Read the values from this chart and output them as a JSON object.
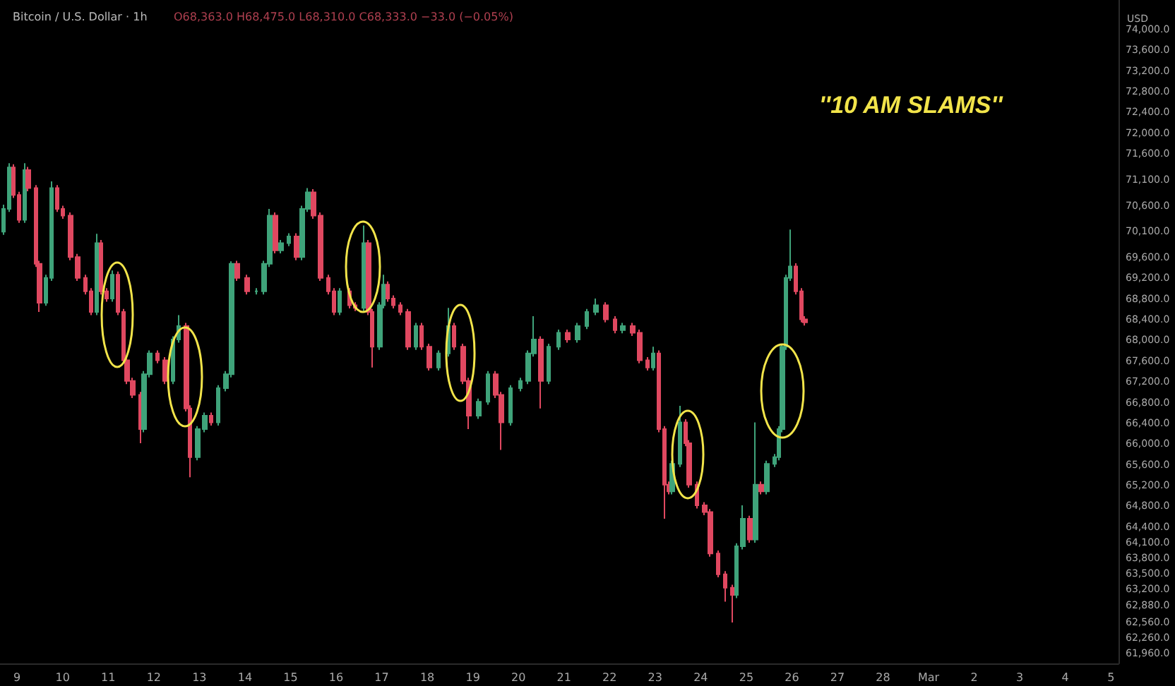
{
  "chart_data": {
    "type": "candlestick",
    "title": "Bitcoin / U.S. Dollar · 1h",
    "subtitle": "O68,363.0 H68,475.0 L68,310.0 C68,333.0 −33.0 (−0.05%)",
    "ylabel": "USD",
    "annotations": [
      "''10 AM SLAMS''"
    ],
    "colors": [
      "#3fa37a",
      "#3fa37a",
      "#e04860",
      "#e04860",
      "#3fa37a",
      "#e04860",
      "#e04860",
      "#e04860",
      "#3fa37a",
      "#3fa37a",
      "#e04860",
      "#e04860",
      "#e04860",
      "#e04860",
      "#e04860",
      "#e04860",
      "#3fa37a",
      "#e04860",
      "#e04860",
      "#3fa37a",
      "#e04860",
      "#e04860",
      "#e04860",
      "#e04860",
      "#e04860",
      "#3fa37a",
      "#3fa37a",
      "#e04860",
      "#e04860",
      "#3fa37a",
      "#3fa37a",
      "#e04860",
      "#e04860",
      "#3fa37a",
      "#3fa37a",
      "#e04860",
      "#3fa37a",
      "#3fa37a",
      "#3fa37a",
      "#e04860",
      "#e04860",
      "#3fa37a",
      "#3fa37a",
      "#3fa37a",
      "#e04860",
      "#3fa37a",
      "#3fa37a",
      "#e04860",
      "#3fa37a",
      "#3fa37a",
      "#e04860",
      "#e04860",
      "#e04860",
      "#e04860",
      "#3fa37a",
      "#e04860",
      "#e04860",
      "#3fa37a",
      "#e04860",
      "#e04860",
      "#3fa37a",
      "#3fa37a",
      "#e04860",
      "#e04860",
      "#e04860",
      "#e04860",
      "#3fa37a",
      "#e04860",
      "#e04860",
      "#3fa37a",
      "#3fa37a",
      "#e04860",
      "#e04860",
      "#e04860",
      "#3fa37a",
      "#3fa37a",
      "#e04860",
      "#e04860",
      "#3fa37a",
      "#3fa37a",
      "#3fa37a",
      "#3fa37a",
      "#e04860",
      "#3fa37a",
      "#3fa37a",
      "#e04860",
      "#3fa37a",
      "#3fa37a",
      "#3fa37a",
      "#e04860",
      "#e04860",
      "#3fa37a",
      "#e04860",
      "#e04860",
      "#e04860",
      "#3fa37a",
      "#e04860",
      "#e04860",
      "#e04860",
      "#3fa37a",
      "#3fa37a",
      "#e04860",
      "#e04860",
      "#e04860",
      "#e04860",
      "#e04860",
      "#e04860",
      "#e04860",
      "#e04860",
      "#3fa37a",
      "#3fa37a",
      "#e04860",
      "#3fa37a",
      "#e04860",
      "#3fa37a",
      "#3fa37a",
      "#3fa37a",
      "#3fa37a",
      "#3fa37a",
      "#3fa37a",
      "#e04860",
      "#e04860",
      "#e04860"
    ],
    "x": [
      "--02-08T17:00",
      "--02-08T20:00",
      "--02-08T22:00",
      "--02-09T01:00",
      "--02-09T04:00",
      "--02-09T06:00",
      "--02-09T10:00",
      "--02-09T12:00",
      "--02-09T15:00",
      "--02-09T18:00",
      "--02-09T21:00",
      "--02-10T00:00",
      "--02-10T04:00",
      "--02-10T08:00",
      "--02-10T12:00",
      "--02-10T15:00",
      "--02-10T18:00",
      "--02-10T20:00",
      "--02-10T23:00",
      "--02-11T02:00",
      "--02-11T05:00",
      "--02-11T08:00",
      "--02-11T10:00",
      "--02-11T13:00",
      "--02-11T17:00",
      "--02-11T19:00",
      "--02-11T22:00",
      "--02-12T02:00",
      "--02-12T06:00",
      "--02-12T10:00",
      "--02-12T13:00",
      "--02-12T17:00",
      "--02-12T19:00",
      "--02-12T23:00",
      "--02-13T03:00",
      "--02-13T06:00",
      "--02-13T10:00",
      "--02-13T14:00",
      "--02-13T17:00",
      "--02-13T20:00",
      "--02-14T01:00",
      "--02-14T06:00",
      "--02-14T10:00",
      "--02-14T13:00",
      "--02-14T16:00",
      "--02-14T19:00",
      "--02-14T23:00",
      "--02-15T03:00",
      "--02-15T06:00",
      "--02-15T09:00",
      "--02-15T12:00",
      "--02-15T16:00",
      "--02-15T20:00",
      "--02-15T23:00",
      "--02-16T02:00",
      "--02-16T07:00",
      "--02-16T10:00",
      "--02-16T15:00",
      "--02-16T17:00",
      "--02-16T19:00",
      "--02-16T23:00",
      "--02-17T01:00",
      "--02-17T03:00",
      "--02-17T06:00",
      "--02-17T10:00",
      "--02-17T14:00",
      "--02-17T18:00",
      "--02-17T21:00",
      "--02-18T01:00",
      "--02-18T06:00",
      "--02-18T11:00",
      "--02-18T14:00",
      "--02-18T19:00",
      "--02-18T22:00",
      "--02-19T03:00",
      "--02-19T08:00",
      "--02-19T12:00",
      "--02-19T15:00",
      "--02-19T20:00",
      "--02-20T01:00",
      "--02-20T05:00",
      "--02-20T08:00",
      "--02-20T12:00",
      "--02-20T16:00",
      "--02-20T21:00",
      "--02-21T02:00",
      "--02-21T07:00",
      "--02-21T12:00",
      "--02-21T17:00",
      "--02-21T22:00",
      "--02-22T03:00",
      "--02-22T07:00",
      "--02-22T12:00",
      "--02-22T16:00",
      "--02-22T20:00",
      "--02-22T23:00",
      "--02-23T02:00",
      "--02-23T05:00",
      "--02-23T07:00",
      "--02-23T09:00",
      "--02-23T13:00",
      "--02-23T16:00",
      "--02-23T18:00",
      "--02-23T22:00",
      "--02-24T02:00",
      "--02-24T05:00",
      "--02-24T09:00",
      "--02-24T13:00",
      "--02-24T17:00",
      "--02-24T19:00",
      "--02-24T22:00",
      "--02-25T02:00",
      "--02-25T05:00",
      "--02-25T08:00",
      "--02-25T11:00",
      "--02-25T15:00",
      "--02-25T17:00",
      "--02-25T19:00",
      "--02-25T21:00",
      "--02-25T23:00",
      "--02-26T02:00",
      "--02-26T05:00",
      "--02-26T07:00"
    ],
    "ohlc": [
      [
        70100,
        70620,
        70040,
        70540
      ],
      [
        70540,
        71420,
        70480,
        71340
      ],
      [
        71340,
        71400,
        70750,
        70810
      ],
      [
        70810,
        70870,
        70270,
        70330
      ],
      [
        70330,
        71420,
        70270,
        71290
      ],
      [
        71290,
        71350,
        70880,
        70940
      ],
      [
        70940,
        71000,
        69420,
        69480
      ],
      [
        69480,
        69540,
        68550,
        68730
      ],
      [
        68730,
        69270,
        68670,
        69210
      ],
      [
        69210,
        71070,
        69150,
        70940
      ],
      [
        70940,
        71000,
        70480,
        70540
      ],
      [
        70540,
        70600,
        70350,
        70410
      ],
      [
        70410,
        70470,
        69550,
        69610
      ],
      [
        69610,
        69670,
        69150,
        69210
      ],
      [
        69210,
        69270,
        68890,
        68950
      ],
      [
        68950,
        69010,
        68490,
        68550
      ],
      [
        68550,
        70060,
        68490,
        69880
      ],
      [
        69880,
        69940,
        68890,
        68950
      ],
      [
        68950,
        69010,
        68750,
        68810
      ],
      [
        68810,
        69350,
        68750,
        69270
      ],
      [
        69270,
        69330,
        68490,
        68550
      ],
      [
        68550,
        68610,
        67560,
        67620
      ],
      [
        67620,
        67680,
        67160,
        67220
      ],
      [
        67220,
        67280,
        66890,
        66950
      ],
      [
        66950,
        67010,
        66020,
        66290
      ],
      [
        66290,
        67410,
        66230,
        67350
      ],
      [
        67350,
        67810,
        67290,
        67750
      ],
      [
        67750,
        67810,
        67560,
        67620
      ],
      [
        67620,
        67680,
        67160,
        67220
      ],
      [
        67220,
        68080,
        67160,
        68020
      ],
      [
        68020,
        68490,
        67960,
        68280
      ],
      [
        68280,
        68340,
        66630,
        66690
      ],
      [
        66690,
        66750,
        65360,
        65750
      ],
      [
        65750,
        66350,
        65690,
        66290
      ],
      [
        66290,
        66610,
        66230,
        66550
      ],
      [
        66550,
        66610,
        66360,
        66420
      ],
      [
        66420,
        67140,
        66360,
        67080
      ],
      [
        67080,
        67410,
        67020,
        67350
      ],
      [
        67350,
        69530,
        67290,
        69480
      ],
      [
        69480,
        69540,
        69150,
        69210
      ],
      [
        69210,
        69270,
        68890,
        68950
      ],
      [
        68950,
        69010,
        68890,
        68950
      ],
      [
        68950,
        69540,
        68890,
        69480
      ],
      [
        69480,
        70540,
        69420,
        70410
      ],
      [
        70410,
        70470,
        69680,
        69740
      ],
      [
        69740,
        69940,
        69680,
        69880
      ],
      [
        69880,
        70070,
        69820,
        70010
      ],
      [
        70010,
        70070,
        69550,
        69610
      ],
      [
        69610,
        70600,
        69550,
        70540
      ],
      [
        70540,
        70940,
        70480,
        70860
      ],
      [
        70860,
        70920,
        70350,
        70410
      ],
      [
        70410,
        70470,
        69150,
        69210
      ],
      [
        69210,
        69270,
        68890,
        68950
      ],
      [
        68950,
        69010,
        68490,
        68550
      ],
      [
        68550,
        69010,
        68490,
        68950
      ],
      [
        68950,
        69010,
        68620,
        68680
      ],
      [
        68680,
        68740,
        68570,
        68630
      ],
      [
        68630,
        70220,
        68570,
        69880
      ],
      [
        69880,
        69940,
        68490,
        68550
      ],
      [
        68550,
        68610,
        67480,
        67880
      ],
      [
        67880,
        68740,
        67820,
        68680
      ],
      [
        68680,
        69270,
        68620,
        69080
      ],
      [
        69080,
        69140,
        68750,
        68810
      ],
      [
        68810,
        68870,
        68620,
        68680
      ],
      [
        68680,
        68740,
        68490,
        68550
      ],
      [
        68550,
        68610,
        67820,
        67880
      ],
      [
        67880,
        68340,
        67820,
        68280
      ],
      [
        68280,
        68340,
        67820,
        67880
      ],
      [
        67880,
        67940,
        67420,
        67480
      ],
      [
        67480,
        67810,
        67420,
        67750
      ],
      [
        67750,
        68630,
        67690,
        68280
      ],
      [
        68280,
        68340,
        67820,
        67880
      ],
      [
        67880,
        67940,
        67160,
        67220
      ],
      [
        67220,
        67280,
        66290,
        66550
      ],
      [
        66550,
        66880,
        66490,
        66820
      ],
      [
        66820,
        67410,
        66760,
        67350
      ],
      [
        67350,
        67410,
        66890,
        66950
      ],
      [
        66950,
        67010,
        65890,
        66420
      ],
      [
        66420,
        67140,
        66360,
        67080
      ],
      [
        67080,
        67280,
        67020,
        67220
      ],
      [
        67220,
        67810,
        67160,
        67750
      ],
      [
        67750,
        68470,
        67690,
        68020
      ],
      [
        68020,
        68080,
        66690,
        67220
      ],
      [
        67220,
        67940,
        67160,
        67880
      ],
      [
        67880,
        68210,
        67820,
        68150
      ],
      [
        68150,
        68210,
        67960,
        68020
      ],
      [
        68020,
        68340,
        67960,
        68280
      ],
      [
        68280,
        68610,
        68220,
        68550
      ],
      [
        68550,
        68810,
        68490,
        68680
      ],
      [
        68680,
        68740,
        68350,
        68410
      ],
      [
        68410,
        68470,
        68140,
        68200
      ],
      [
        68200,
        68340,
        68140,
        68280
      ],
      [
        68280,
        68340,
        68090,
        68150
      ],
      [
        68150,
        68210,
        67560,
        67620
      ],
      [
        67620,
        67680,
        67420,
        67480
      ],
      [
        67480,
        67880,
        67420,
        67750
      ],
      [
        67750,
        67810,
        66230,
        66290
      ],
      [
        66290,
        66350,
        64560,
        65220
      ],
      [
        65220,
        65280,
        65030,
        65090
      ],
      [
        65090,
        65680,
        65030,
        65620
      ],
      [
        65620,
        66740,
        65560,
        66420
      ],
      [
        66420,
        66480,
        65960,
        66020
      ],
      [
        66020,
        66080,
        65160,
        65220
      ],
      [
        65220,
        65280,
        64760,
        64820
      ],
      [
        64820,
        64880,
        64630,
        64690
      ],
      [
        64690,
        64750,
        63830,
        63890
      ],
      [
        63890,
        63950,
        63430,
        63490
      ],
      [
        63490,
        63550,
        62960,
        63230
      ],
      [
        63230,
        63290,
        62560,
        63090
      ],
      [
        63090,
        64090,
        63030,
        64030
      ],
      [
        64030,
        64820,
        63970,
        64560
      ],
      [
        64560,
        64620,
        64100,
        64160
      ],
      [
        64160,
        66420,
        64100,
        65220
      ],
      [
        65220,
        65280,
        65030,
        65090
      ],
      [
        65090,
        65680,
        65030,
        65620
      ],
      [
        65620,
        65810,
        65560,
        65750
      ],
      [
        65750,
        66350,
        65690,
        66290
      ],
      [
        66290,
        67940,
        66230,
        67880
      ],
      [
        67880,
        69270,
        67820,
        69210
      ],
      [
        69210,
        70140,
        69150,
        69430
      ],
      [
        69430,
        69490,
        68890,
        68950
      ],
      [
        68950,
        69010,
        68350,
        68410
      ],
      [
        68410,
        68470,
        68290,
        68350
      ]
    ],
    "xlim": [
      "--02-08T15:00",
      "--03-05T04:00"
    ],
    "xticks": [
      {
        "value": "--02-09",
        "label": "9"
      },
      {
        "value": "--02-10",
        "label": "10"
      },
      {
        "value": "--02-11",
        "label": "11"
      },
      {
        "value": "--02-12",
        "label": "12"
      },
      {
        "value": "--02-13",
        "label": "13"
      },
      {
        "value": "--02-14",
        "label": "14"
      },
      {
        "value": "--02-15",
        "label": "15"
      },
      {
        "value": "--02-16",
        "label": "16"
      },
      {
        "value": "--02-17",
        "label": "17"
      },
      {
        "value": "--02-18",
        "label": "18"
      },
      {
        "value": "--02-19",
        "label": "19"
      },
      {
        "value": "--02-20",
        "label": "20"
      },
      {
        "value": "--02-21",
        "label": "21"
      },
      {
        "value": "--02-22",
        "label": "22"
      },
      {
        "value": "--02-23",
        "label": "23"
      },
      {
        "value": "--02-24",
        "label": "24"
      },
      {
        "value": "--02-25",
        "label": "25"
      },
      {
        "value": "--02-26",
        "label": "26"
      },
      {
        "value": "--02-27",
        "label": "27"
      },
      {
        "value": "--02-28",
        "label": "28"
      },
      {
        "value": "--03-01",
        "label": "Mar"
      },
      {
        "value": "--03-02",
        "label": "2"
      },
      {
        "value": "--03-03",
        "label": "3"
      },
      {
        "value": "--03-04",
        "label": "4"
      },
      {
        "value": "--03-05",
        "label": "5"
      }
    ],
    "ylim": [
      61770,
      74570
    ],
    "yticks": [
      {
        "value": 74000,
        "label": "74,000.0"
      },
      {
        "value": 73600,
        "label": "73,600.0"
      },
      {
        "value": 73200,
        "label": "73,200.0"
      },
      {
        "value": 72800,
        "label": "72,800.0"
      },
      {
        "value": 72400,
        "label": "72,400.0"
      },
      {
        "value": 72000,
        "label": "72,000.0"
      },
      {
        "value": 71600,
        "label": "71,600.0"
      },
      {
        "value": 71100,
        "label": "71,100.0"
      },
      {
        "value": 70600,
        "label": "70,600.0"
      },
      {
        "value": 70100,
        "label": "70,100.0"
      },
      {
        "value": 69600,
        "label": "69,600.0"
      },
      {
        "value": 69200,
        "label": "69,200.0"
      },
      {
        "value": 68800,
        "label": "68,800.0"
      },
      {
        "value": 68400,
        "label": "68,400.0"
      },
      {
        "value": 68000,
        "label": "68,000.0"
      },
      {
        "value": 67600,
        "label": "67,600.0"
      },
      {
        "value": 67200,
        "label": "67,200.0"
      },
      {
        "value": 66800,
        "label": "66,800.0"
      },
      {
        "value": 66400,
        "label": "66,400.0"
      },
      {
        "value": 66000,
        "label": "66,000.0"
      },
      {
        "value": 65600,
        "label": "65,600.0"
      },
      {
        "value": 65200,
        "label": "65,200.0"
      },
      {
        "value": 64800,
        "label": "64,800.0"
      },
      {
        "value": 64400,
        "label": "64,400.0"
      },
      {
        "value": 64100,
        "label": "64,100.0"
      },
      {
        "value": 63800,
        "label": "63,800.0"
      },
      {
        "value": 63500,
        "label": "63,500.0"
      },
      {
        "value": 63200,
        "label": "63,200.0"
      },
      {
        "value": 62880,
        "label": "62,880.0"
      },
      {
        "value": 62560,
        "label": "62,560.0"
      },
      {
        "value": 62260,
        "label": "62,260.0"
      },
      {
        "value": 61960,
        "label": "61,960.0"
      }
    ],
    "grid": false
  }
}
